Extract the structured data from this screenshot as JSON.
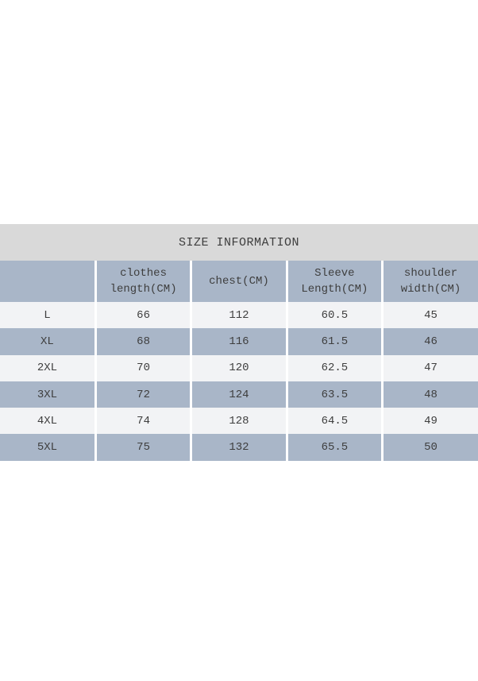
{
  "colors": {
    "page_bg": "#ffffff",
    "title_band": "#d9d9d9",
    "header_blue": "#a9b6c8",
    "row_blue": "#a9b6c8",
    "row_light": "#f2f3f5",
    "separator": "#ffffff",
    "text": "#3e3e3e"
  },
  "size_chart": {
    "title": "SIZE INFORMATION",
    "header": {
      "size_col": "",
      "clothes_l1": "clothes",
      "clothes_l2": "length(CM)",
      "chest": "chest(CM)",
      "sleeve_l1": "Sleeve",
      "sleeve_l2": "Length(CM)",
      "shoulder_l1": "shoulder",
      "shoulder_l2": "width(CM)"
    },
    "rows": [
      [
        "L",
        "66",
        "112",
        "60.5",
        "45"
      ],
      [
        "XL",
        "68",
        "116",
        "61.5",
        "46"
      ],
      [
        "2XL",
        "70",
        "120",
        "62.5",
        "47"
      ],
      [
        "3XL",
        "72",
        "124",
        "63.5",
        "48"
      ],
      [
        "4XL",
        "74",
        "128",
        "64.5",
        "49"
      ],
      [
        "5XL",
        "75",
        "132",
        "65.5",
        "50"
      ]
    ]
  }
}
